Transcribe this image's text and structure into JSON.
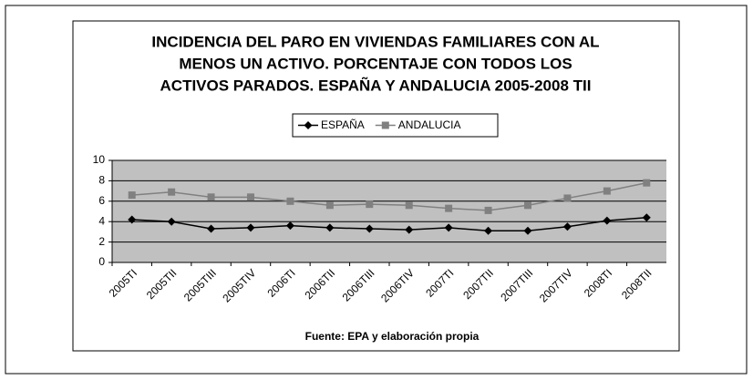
{
  "chart_data": {
    "type": "line",
    "title": [
      "INCIDENCIA DEL PARO EN VIVIENDAS FAMILIARES CON AL",
      "MENOS UN ACTIVO. PORCENTAJE CON TODOS LOS",
      "ACTIVOS PARADOS. ESPAÑA Y ANDALUCIA 2005-2008 TII"
    ],
    "categories": [
      "2005TI",
      "2005TII",
      "2005TIII",
      "2005TIV",
      "2006TI",
      "2006TII",
      "2006TIII",
      "2006TIV",
      "2007TI",
      "2007TII",
      "2007TIII",
      "2007TIV",
      "2008TI",
      "2008TII"
    ],
    "series": [
      {
        "name": "ESPAÑA",
        "color": "#000000",
        "marker": "diamond",
        "values": [
          4.2,
          4.0,
          3.3,
          3.4,
          3.6,
          3.4,
          3.3,
          3.2,
          3.4,
          3.1,
          3.1,
          3.5,
          4.1,
          4.4
        ]
      },
      {
        "name": "ANDALUCIA",
        "color": "#808080",
        "marker": "square",
        "values": [
          6.6,
          6.9,
          6.4,
          6.4,
          6.0,
          5.6,
          5.7,
          5.6,
          5.3,
          5.1,
          5.6,
          6.3,
          7.0,
          7.8
        ]
      }
    ],
    "ylim": [
      0,
      10
    ],
    "yticks": [
      0,
      2,
      4,
      6,
      8,
      10
    ],
    "grid": true,
    "legend": "top",
    "note": "Fuente: EPA y elaboración propia"
  }
}
